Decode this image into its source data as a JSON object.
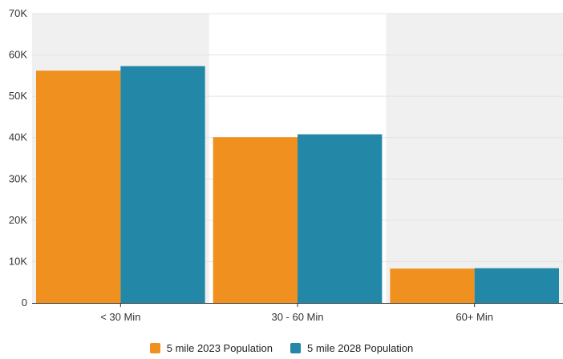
{
  "chart_data": {
    "type": "bar",
    "categories": [
      "< 30 Min",
      "30 - 60 Min",
      "60+ Min"
    ],
    "series": [
      {
        "name": "5 mile 2023 Population",
        "values": [
          56200,
          40100,
          8300
        ],
        "color": "#F0901E"
      },
      {
        "name": "5 mile 2028 Population",
        "values": [
          57300,
          40800,
          8400
        ],
        "color": "#2387A8"
      }
    ],
    "title": "",
    "xlabel": "",
    "ylabel": "",
    "ylim": [
      0,
      70000
    ],
    "yticks": [
      "0",
      "10K",
      "20K",
      "30K",
      "40K",
      "50K",
      "60K",
      "70K"
    ],
    "grid": true,
    "band_color": "#F0F0F0",
    "legend_position": "bottom-center"
  }
}
